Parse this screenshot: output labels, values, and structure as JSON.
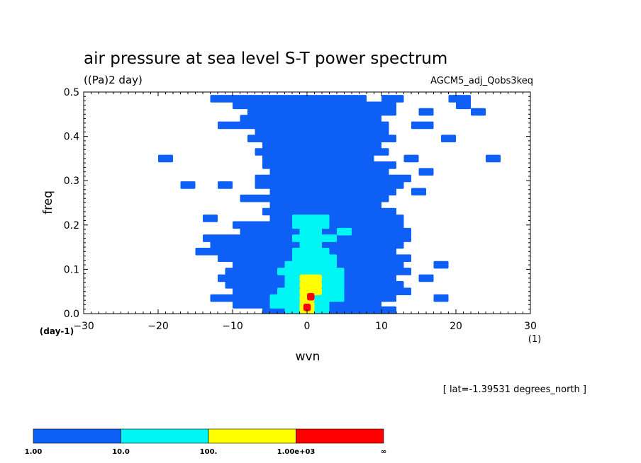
{
  "chart_data": {
    "type": "heatmap",
    "title": "air pressure at sea level S-T power spectrum",
    "units": "((Pa)2 day)",
    "experiment": "AGCM5_adj_Qobs3keq",
    "xlabel": "wvn",
    "xunit": "(1)",
    "ylabel": "freq",
    "yunit": "(day-1)",
    "xlim": [
      -30,
      30
    ],
    "ylim": [
      0,
      0.5
    ],
    "xticks": [
      -30,
      -20,
      -10,
      0,
      10,
      20,
      30
    ],
    "yticks": [
      0.0,
      0.1,
      0.2,
      0.3,
      0.4,
      0.5
    ],
    "xtick_labels": [
      "−30",
      "−20",
      "−10",
      "0",
      "10",
      "20",
      "30"
    ],
    "ytick_labels": [
      "0.0",
      "0.1",
      "0.2",
      "0.3",
      "0.4",
      "0.5"
    ],
    "annotation": "[ lat=-1.39531 degrees_north ]",
    "colorbar": {
      "colors": [
        "#0d5ff5",
        "#00f5f5",
        "#ffff00",
        "#ff0000"
      ],
      "labels": [
        "1.00",
        "10.0",
        "100.",
        "1.00e+03",
        "∞"
      ],
      "levels": [
        1,
        10,
        100,
        1000
      ]
    },
    "bands": [
      {
        "f": 0.485,
        "ranges": [
          [
            -13,
            8,
            1
          ],
          [
            10,
            13,
            1
          ],
          [
            19,
            22,
            1
          ]
        ]
      },
      {
        "f": 0.47,
        "ranges": [
          [
            -10,
            12,
            1
          ],
          [
            20,
            22,
            1
          ]
        ]
      },
      {
        "f": 0.455,
        "ranges": [
          [
            -8,
            12,
            1
          ],
          [
            15,
            17,
            1
          ],
          [
            22,
            24,
            1
          ]
        ]
      },
      {
        "f": 0.44,
        "ranges": [
          [
            -9,
            10,
            1
          ]
        ]
      },
      {
        "f": 0.425,
        "ranges": [
          [
            -12,
            11,
            1
          ],
          [
            14,
            17,
            1
          ]
        ]
      },
      {
        "f": 0.41,
        "ranges": [
          [
            -7,
            11,
            1
          ]
        ]
      },
      {
        "f": 0.395,
        "ranges": [
          [
            -8,
            12,
            1
          ],
          [
            18,
            20,
            1
          ]
        ]
      },
      {
        "f": 0.38,
        "ranges": [
          [
            -6,
            10,
            1
          ]
        ]
      },
      {
        "f": 0.365,
        "ranges": [
          [
            -7,
            11,
            1
          ]
        ]
      },
      {
        "f": 0.35,
        "ranges": [
          [
            -20,
            -18,
            1
          ],
          [
            -6,
            9,
            1
          ],
          [
            13,
            15,
            1
          ],
          [
            24,
            26,
            1
          ]
        ]
      },
      {
        "f": 0.335,
        "ranges": [
          [
            -6,
            12,
            1
          ]
        ]
      },
      {
        "f": 0.32,
        "ranges": [
          [
            -5,
            11,
            1
          ],
          [
            15,
            17,
            1
          ]
        ]
      },
      {
        "f": 0.305,
        "ranges": [
          [
            -7,
            14,
            1
          ]
        ]
      },
      {
        "f": 0.29,
        "ranges": [
          [
            -17,
            -15,
            1
          ],
          [
            -12,
            -10,
            1
          ],
          [
            -7,
            13,
            1
          ]
        ]
      },
      {
        "f": 0.275,
        "ranges": [
          [
            -5,
            12,
            1
          ],
          [
            14,
            16,
            1
          ]
        ]
      },
      {
        "f": 0.26,
        "ranges": [
          [
            -9,
            11,
            1
          ]
        ]
      },
      {
        "f": 0.245,
        "ranges": [
          [
            -5,
            10,
            1
          ]
        ]
      },
      {
        "f": 0.23,
        "ranges": [
          [
            -6,
            12,
            1
          ]
        ]
      },
      {
        "f": 0.215,
        "ranges": [
          [
            -14,
            -12,
            1
          ],
          [
            -5,
            13,
            1
          ]
        ]
      },
      {
        "f": 0.2,
        "ranges": [
          [
            -10,
            13,
            1
          ]
        ]
      },
      {
        "f": 0.185,
        "ranges": [
          [
            -9,
            14,
            1
          ]
        ]
      },
      {
        "f": 0.17,
        "ranges": [
          [
            -14,
            14,
            1
          ]
        ]
      },
      {
        "f": 0.155,
        "ranges": [
          [
            -13,
            13,
            1
          ]
        ]
      },
      {
        "f": 0.14,
        "ranges": [
          [
            -15,
            12,
            1
          ]
        ]
      },
      {
        "f": 0.125,
        "ranges": [
          [
            -12,
            14,
            1
          ]
        ]
      },
      {
        "f": 0.11,
        "ranges": [
          [
            -10,
            13,
            1
          ],
          [
            17,
            19,
            1
          ]
        ]
      },
      {
        "f": 0.095,
        "ranges": [
          [
            -11,
            14,
            1
          ]
        ]
      },
      {
        "f": 0.08,
        "ranges": [
          [
            -12,
            12,
            1
          ],
          [
            15,
            17,
            1
          ]
        ]
      },
      {
        "f": 0.065,
        "ranges": [
          [
            -11,
            13,
            1
          ]
        ]
      },
      {
        "f": 0.05,
        "ranges": [
          [
            -10,
            14,
            1
          ]
        ]
      },
      {
        "f": 0.035,
        "ranges": [
          [
            -13,
            12,
            1
          ],
          [
            17,
            19,
            1
          ]
        ]
      },
      {
        "f": 0.02,
        "ranges": [
          [
            -10,
            10,
            1
          ]
        ]
      },
      {
        "f": 0.008,
        "ranges": [
          [
            -6,
            12,
            1
          ]
        ]
      },
      {
        "f": 0.215,
        "ranges": [
          [
            -2,
            3,
            2
          ]
        ]
      },
      {
        "f": 0.2,
        "ranges": [
          [
            -2,
            3,
            2
          ]
        ]
      },
      {
        "f": 0.185,
        "ranges": [
          [
            -1,
            2,
            2
          ],
          [
            4,
            6,
            2
          ]
        ]
      },
      {
        "f": 0.17,
        "ranges": [
          [
            -2,
            4,
            2
          ]
        ]
      },
      {
        "f": 0.155,
        "ranges": [
          [
            -1,
            2,
            2
          ]
        ]
      },
      {
        "f": 0.14,
        "ranges": [
          [
            -2,
            3,
            2
          ]
        ]
      },
      {
        "f": 0.125,
        "ranges": [
          [
            -2,
            4,
            2
          ]
        ]
      },
      {
        "f": 0.11,
        "ranges": [
          [
            -3,
            4,
            2
          ]
        ]
      },
      {
        "f": 0.095,
        "ranges": [
          [
            -4,
            5,
            2
          ]
        ]
      },
      {
        "f": 0.08,
        "ranges": [
          [
            -3,
            5,
            2
          ]
        ]
      },
      {
        "f": 0.065,
        "ranges": [
          [
            -3,
            5,
            2
          ]
        ]
      },
      {
        "f": 0.05,
        "ranges": [
          [
            -4,
            5,
            2
          ]
        ]
      },
      {
        "f": 0.035,
        "ranges": [
          [
            -5,
            5,
            2
          ]
        ]
      },
      {
        "f": 0.02,
        "ranges": [
          [
            -5,
            3,
            2
          ]
        ]
      },
      {
        "f": 0.008,
        "ranges": [
          [
            -3,
            3,
            2
          ]
        ]
      },
      {
        "f": 0.08,
        "ranges": [
          [
            -1,
            2,
            3
          ]
        ]
      },
      {
        "f": 0.065,
        "ranges": [
          [
            -1,
            2,
            3
          ]
        ]
      },
      {
        "f": 0.05,
        "ranges": [
          [
            -1,
            2,
            3
          ]
        ]
      },
      {
        "f": 0.035,
        "ranges": [
          [
            -1,
            1,
            3
          ]
        ]
      },
      {
        "f": 0.02,
        "ranges": [
          [
            -1,
            1,
            3
          ]
        ]
      },
      {
        "f": 0.008,
        "ranges": [
          [
            -1,
            1,
            3
          ]
        ]
      },
      {
        "f": 0.038,
        "ranges": [
          [
            0,
            1,
            4
          ]
        ]
      },
      {
        "f": 0.014,
        "ranges": [
          [
            -0.5,
            0.5,
            4
          ]
        ]
      }
    ]
  }
}
